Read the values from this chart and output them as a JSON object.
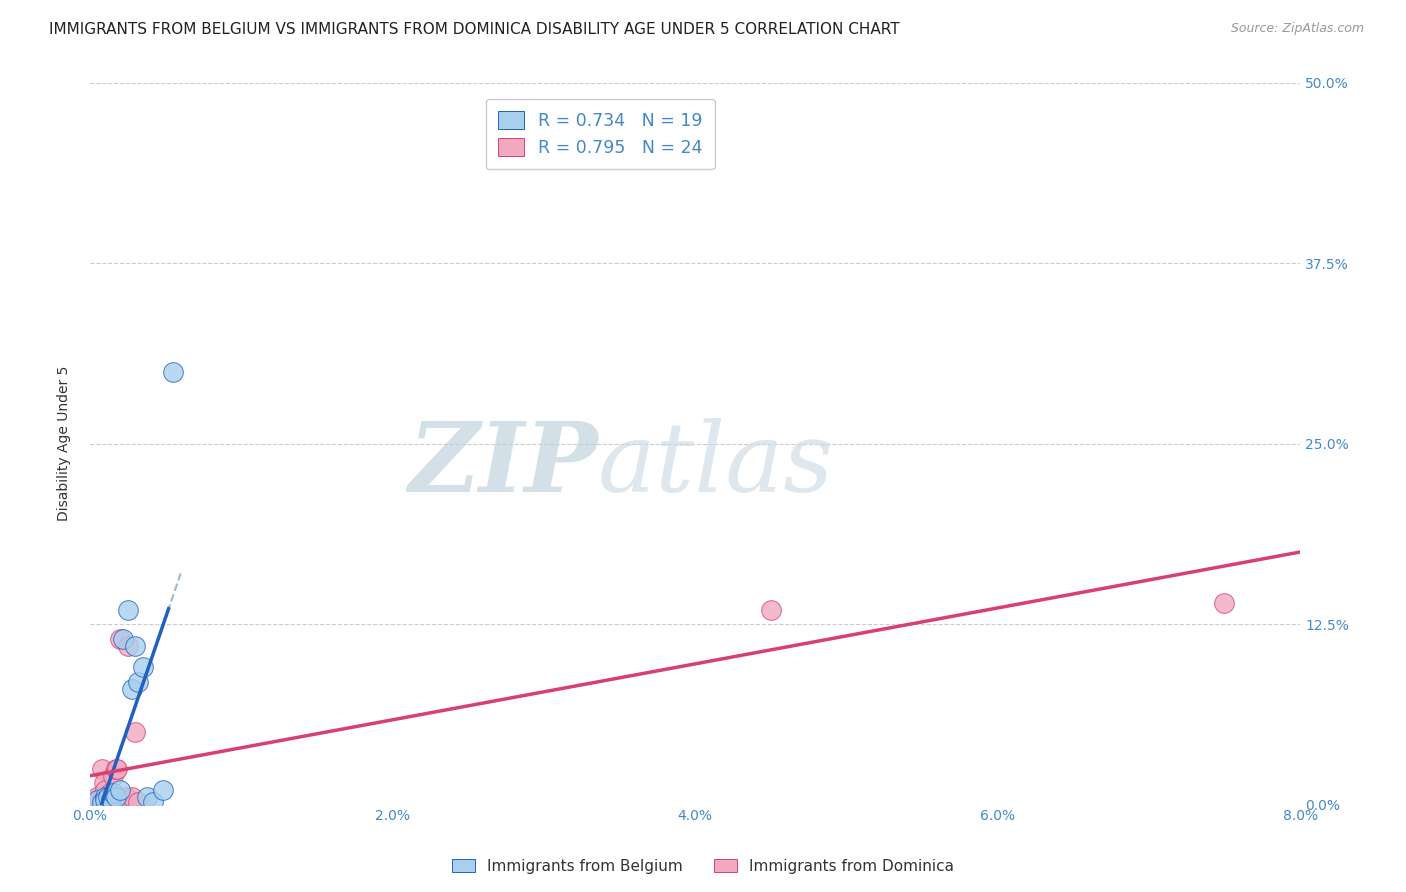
{
  "title": "IMMIGRANTS FROM BELGIUM VS IMMIGRANTS FROM DOMINICA DISABILITY AGE UNDER 5 CORRELATION CHART",
  "source": "Source: ZipAtlas.com",
  "xlabel_vals": [
    0.0,
    2.0,
    4.0,
    6.0,
    8.0
  ],
  "ylabel_vals": [
    0.0,
    12.5,
    25.0,
    37.5,
    50.0
  ],
  "xlim": [
    0.0,
    8.0
  ],
  "ylim": [
    0.0,
    50.0
  ],
  "legend_belgium_r": "R = 0.734",
  "legend_belgium_n": "N = 19",
  "legend_dominica_r": "R = 0.795",
  "legend_dominica_n": "N = 24",
  "color_belgium": "#A8CFEE",
  "color_dominica": "#F2A8BE",
  "color_trendline_belgium": "#2060C0",
  "color_trendline_dominica": "#D84070",
  "color_dashed": "#A0B8D0",
  "watermark_zip": "ZIP",
  "watermark_atlas": "atlas",
  "watermark_color_zip": "#C0D0E0",
  "watermark_color_atlas": "#C0D0E0",
  "grid_color": "#CCCCCC",
  "background_color": "#FFFFFF",
  "ylabel": "Disability Age Under 5",
  "title_fontsize": 11,
  "axis_label_fontsize": 10,
  "tick_fontsize": 10,
  "belgium_x": [
    0.05,
    0.08,
    0.1,
    0.1,
    0.12,
    0.14,
    0.15,
    0.17,
    0.2,
    0.22,
    0.25,
    0.28,
    0.3,
    0.32,
    0.35,
    0.38,
    0.42,
    0.48,
    0.55
  ],
  "belgium_y": [
    0.3,
    0.2,
    0.5,
    0.3,
    0.5,
    0.4,
    0.8,
    0.5,
    1.0,
    11.5,
    13.5,
    8.0,
    11.0,
    8.5,
    9.5,
    0.5,
    0.2,
    1.0,
    30.0
  ],
  "dominica_x": [
    0.02,
    0.03,
    0.05,
    0.06,
    0.07,
    0.08,
    0.08,
    0.09,
    0.1,
    0.1,
    0.12,
    0.13,
    0.15,
    0.17,
    0.18,
    0.2,
    0.22,
    0.24,
    0.25,
    0.28,
    0.3,
    0.32,
    4.5,
    7.5
  ],
  "dominica_y": [
    0.0,
    0.0,
    0.5,
    0.3,
    0.0,
    0.5,
    2.5,
    1.5,
    0.5,
    1.0,
    0.5,
    0.8,
    2.0,
    2.5,
    2.5,
    11.5,
    0.0,
    0.5,
    11.0,
    0.5,
    5.0,
    0.2,
    13.5,
    14.0
  ],
  "trendline_belgium_x0": 0.0,
  "trendline_belgium_x1": 0.56,
  "trendline_dominica_x0": 0.0,
  "trendline_dominica_x1": 8.0,
  "trendline_dominica_y0": 2.0,
  "trendline_dominica_y1": 17.5
}
